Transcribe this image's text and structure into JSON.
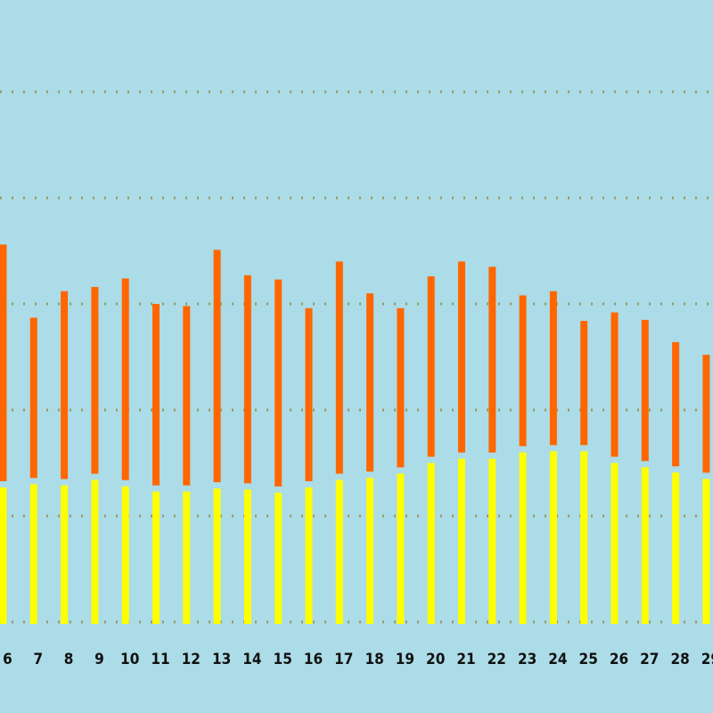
{
  "chart_data": {
    "type": "bar",
    "categories": [
      "6",
      "7",
      "8",
      "9",
      "10",
      "11",
      "12",
      "13",
      "14",
      "15",
      "16",
      "17",
      "18",
      "19",
      "20",
      "21",
      "22",
      "23",
      "24",
      "25",
      "26",
      "27",
      "28",
      "29"
    ],
    "series": [
      {
        "name": "",
        "role": "low",
        "color": "#ffff00",
        "values": [
          127,
          130,
          129,
          134,
          128,
          123,
          123,
          126,
          125,
          122,
          127,
          134,
          136,
          140,
          150,
          154,
          154,
          160,
          161,
          161,
          150,
          146,
          141,
          135
        ]
      },
      {
        "name": "",
        "role": "high",
        "color": "#ff6600",
        "values": [
          356,
          287,
          312,
          316,
          324,
          300,
          298,
          351,
          327,
          323,
          296,
          340,
          310,
          296,
          326,
          340,
          335,
          308,
          312,
          284,
          292,
          285,
          264,
          252
        ]
      }
    ],
    "ylim": [
      0,
      500
    ],
    "yticks": [
      0,
      100,
      200,
      300,
      400,
      500
    ],
    "grid": true,
    "title": "",
    "xlabel": "",
    "ylabel": ""
  },
  "colors": {
    "background": "#acdce7",
    "grid": "#999966",
    "label": "#111111"
  }
}
